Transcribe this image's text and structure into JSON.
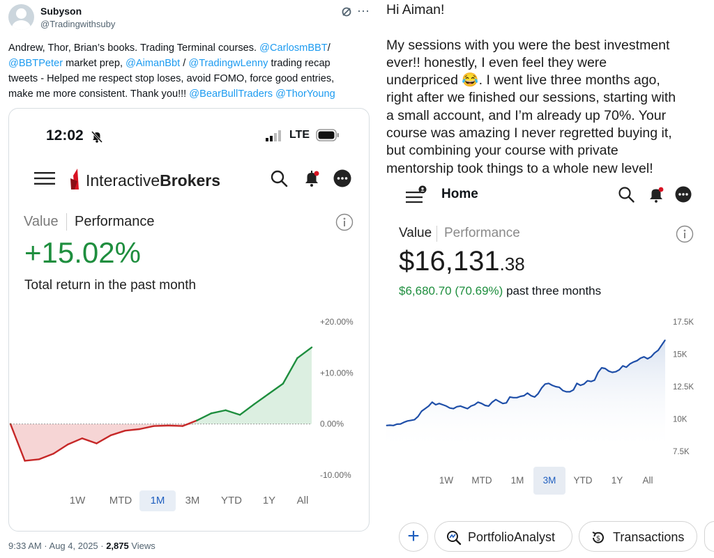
{
  "tweet": {
    "author_name": "Subyson",
    "author_handle": "@Tradingwithsuby",
    "text": {
      "l1_plain": "Andrew, Thor, Brian’s books. Trading Terminal courses. ",
      "l1_mention": "@CarlosmBBT",
      "l1_tail": "/",
      "l2_mention_a": "@BBTPeter",
      "l2_mid": " market prep, ",
      "l2_mention_b": "@AimanBbt",
      "l2_gap": "  / ",
      "l2_mention_c": "@TradingwLenny",
      "l2_tail": " trading recap",
      "l3_plain": "tweets - Helped me respect stop loses, avoid FOMO, force good entries,",
      "l4_plain": "make me more consistent. Thank you!!!  ",
      "l4_mention_a": "@BearBullTraders",
      "l4_mention_b": "@ThorYoung"
    },
    "footer": {
      "time_date": "9:33 AM · Aug 4, 2025 · ",
      "views_count": "2,875",
      "views_label": " Views"
    }
  },
  "left_screenshot": {
    "status_time": "12:02",
    "network": "LTE",
    "brand_regular": "Interactive",
    "brand_bold": "Brokers",
    "tab_value": "Value",
    "tab_performance": "Performance",
    "return_value": "+15.02%",
    "return_caption": "Total return in the past month",
    "ranges": [
      "1W",
      "MTD",
      "1M",
      "3M",
      "YTD",
      "1Y",
      "All"
    ],
    "active_range": "1M"
  },
  "right_screenshot": {
    "message": [
      "Hi Aiman!",
      "",
      "My sessions with you were the best investment",
      "ever!! honestly, I even feel they were",
      "underpriced 😂. I went live three months ago,",
      "right after we finished our sessions, starting with",
      "a small account, and I’m already up 70%. Your",
      "course was amazing I never regretted buying it,",
      "but combining your course with private",
      "mentorship took things to a whole new level!"
    ],
    "home_label": "Home",
    "tab_value": "Value",
    "tab_performance": "Performance",
    "amount_main": "$16,131",
    "amount_cents": ".38",
    "change_value": "$6,680.70 (70.69%)",
    "change_label": " past three months",
    "ranges": [
      "1W",
      "MTD",
      "1M",
      "3M",
      "YTD",
      "1Y",
      "All"
    ],
    "active_range": "3M",
    "buttons": {
      "portfolio": "PortfolioAnalyst",
      "transactions": "Transactions"
    }
  },
  "colors": {
    "gain": "#1e8e3e",
    "loss": "#c62828",
    "accent": "#1f5fbf",
    "mention": "#1d9bf0"
  },
  "chart_data": [
    {
      "type": "line",
      "title": "",
      "x": [
        1,
        2,
        3,
        4,
        5,
        6,
        7,
        8,
        9,
        10,
        11,
        12,
        13,
        14,
        15,
        16,
        17,
        18,
        19,
        20,
        21,
        22
      ],
      "values": [
        0.0,
        -7.2,
        -6.9,
        -5.8,
        -4.0,
        -2.8,
        -3.8,
        -2.2,
        -1.3,
        -1.0,
        -0.4,
        -0.3,
        -0.4,
        0.7,
        2.1,
        2.7,
        1.8,
        3.9,
        5.9,
        7.9,
        12.9,
        15.0
      ],
      "ylim": [
        -10,
        20
      ],
      "yticks": [
        "+20.00%",
        "+10.00%",
        "0.00%",
        "-10.00%"
      ],
      "ytick_values": [
        20,
        10,
        0,
        -10
      ],
      "baseline": 0
    },
    {
      "type": "area",
      "title": "",
      "x": [
        1,
        2,
        3,
        4,
        5,
        6,
        7,
        8,
        9,
        10,
        11,
        12,
        13,
        14,
        15,
        16,
        17,
        18,
        19,
        20,
        21,
        22,
        23,
        24,
        25,
        26,
        27,
        28,
        29,
        30,
        31,
        32,
        33,
        34,
        35,
        36,
        37,
        38,
        39,
        40,
        41,
        42,
        43,
        44,
        45,
        46,
        47,
        48,
        49,
        50,
        51,
        52,
        53,
        54,
        55,
        56,
        57,
        58,
        59,
        60,
        61,
        62,
        63,
        64,
        65,
        66,
        67,
        68,
        69,
        70,
        71,
        72,
        73,
        74,
        75,
        76,
        77,
        78,
        79,
        80
      ],
      "values": [
        9500,
        9520,
        9500,
        9600,
        9620,
        9750,
        9850,
        9900,
        9950,
        10200,
        10600,
        10800,
        11000,
        11300,
        11100,
        11200,
        11100,
        11000,
        10850,
        10800,
        10950,
        11000,
        10900,
        10800,
        11000,
        11100,
        11300,
        11200,
        11050,
        11000,
        11300,
        11500,
        11350,
        11200,
        11250,
        11700,
        11650,
        11650,
        11750,
        11800,
        12000,
        11800,
        11700,
        11950,
        12400,
        12700,
        12750,
        12600,
        12500,
        12450,
        12200,
        12100,
        12100,
        12250,
        12750,
        12600,
        12700,
        12950,
        12900,
        13000,
        13600,
        13950,
        13900,
        13700,
        13600,
        13650,
        13800,
        14100,
        14000,
        14250,
        14400,
        14500,
        14700,
        14800,
        14650,
        14800,
        15100,
        15300,
        15700,
        16100
      ],
      "ylim": [
        7500,
        17500
      ],
      "yticks": [
        "17.5K",
        "15K",
        "12.5K",
        "10K",
        "7.5K"
      ],
      "ytick_values": [
        17500,
        15000,
        12500,
        10000,
        7500
      ]
    }
  ]
}
